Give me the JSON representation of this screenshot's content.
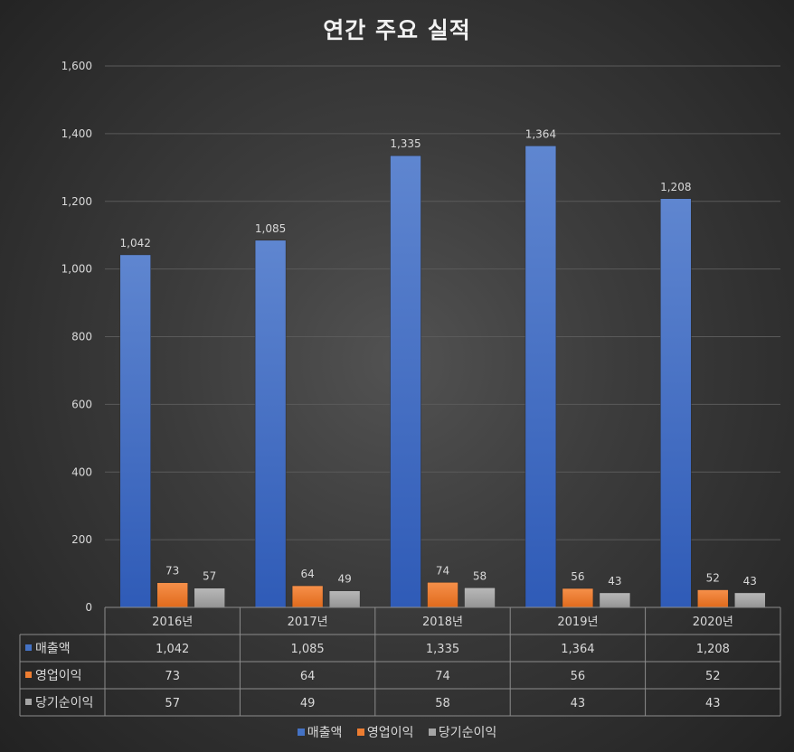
{
  "chart_data": {
    "type": "bar",
    "title": "연간 주요 실적",
    "categories": [
      "2016년",
      "2017년",
      "2018년",
      "2019년",
      "2020년"
    ],
    "series": [
      {
        "name": "매출액",
        "values": [
          1042,
          1085,
          1335,
          1364,
          1208
        ],
        "labels": [
          "1,042",
          "1,085",
          "1,335",
          "1,364",
          "1,208"
        ],
        "color": "#4472c4"
      },
      {
        "name": "영업이익",
        "values": [
          73,
          64,
          74,
          56,
          52
        ],
        "labels": [
          "73",
          "64",
          "74",
          "56",
          "52"
        ],
        "color": "#ed7d31"
      },
      {
        "name": "당기순이익",
        "values": [
          57,
          49,
          58,
          43,
          43
        ],
        "labels": [
          "57",
          "49",
          "58",
          "43",
          "43"
        ],
        "color": "#a5a5a5"
      }
    ],
    "ylim": [
      0,
      1600
    ],
    "yticks": [
      0,
      200,
      400,
      600,
      800,
      1000,
      1200,
      1400,
      1600
    ],
    "ytick_labels": [
      "0",
      "200",
      "400",
      "600",
      "800",
      "1,000",
      "1,200",
      "1,400",
      "1,600"
    ],
    "grid": true,
    "data_table": true,
    "legend": "bottom"
  }
}
